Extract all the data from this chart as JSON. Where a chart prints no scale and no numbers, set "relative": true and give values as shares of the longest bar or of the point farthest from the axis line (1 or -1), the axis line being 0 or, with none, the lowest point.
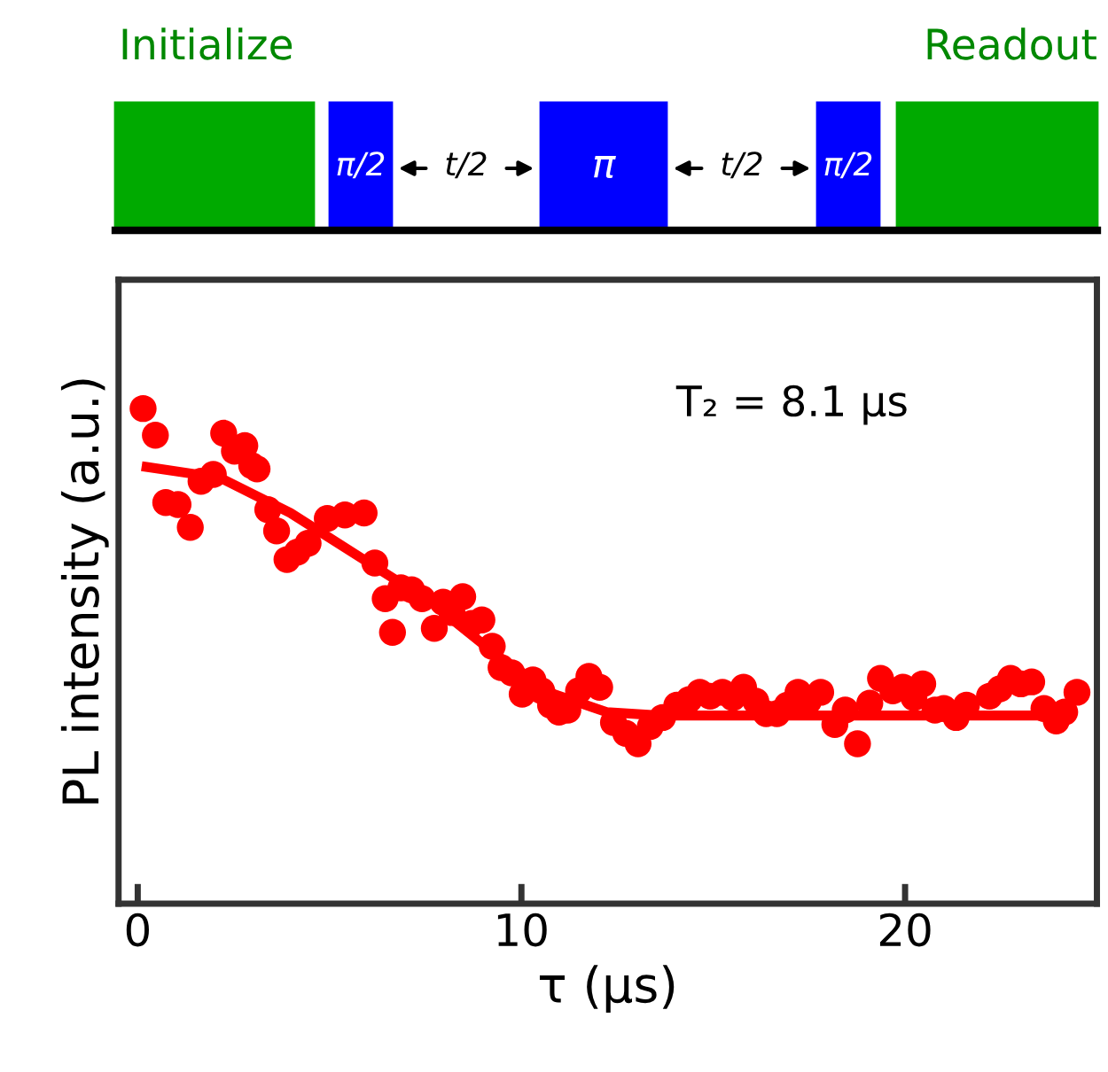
{
  "chart_data": {
    "type": "scatter",
    "xlabel": "τ (μs)",
    "ylabel": "PL intensity (a.u.)",
    "relative": true,
    "xlim": [
      -0.5,
      25
    ],
    "xticks": [
      0,
      10,
      20
    ],
    "tick_labels": "x",
    "annotations": [
      "Initialize",
      "Readout",
      "π/2",
      "t/2",
      "π",
      "t/2",
      "π/2",
      "T₂ = 8.1 μs"
    ],
    "series": [
      {
        "color": "#ff0000",
        "marker": "circle",
        "x": [
          0.14,
          0.46,
          0.73,
          1.05,
          1.37,
          1.65,
          1.97,
          2.24,
          2.52,
          2.79,
          2.97,
          3.11,
          3.39,
          3.62,
          3.89,
          4.16,
          4.44,
          4.94,
          5.4,
          5.9,
          6.18,
          6.45,
          6.64,
          6.86,
          7.14,
          7.41,
          7.73,
          7.96,
          8.19,
          8.47,
          8.7,
          8.97,
          9.24,
          9.47,
          9.75,
          10.02,
          10.3,
          10.53,
          10.76,
          10.98,
          11.21,
          11.49,
          11.76,
          12.04,
          12.4,
          12.72,
          13.04,
          13.36,
          13.68,
          14.05,
          14.37,
          14.65,
          14.92,
          15.24,
          15.51,
          15.79,
          16.11,
          16.38,
          16.66,
          16.93,
          17.21,
          17.48,
          17.8,
          18.17,
          18.44,
          18.76,
          19.08,
          19.36,
          19.68,
          19.95,
          20.23,
          20.46,
          20.78,
          21.01,
          21.33,
          21.6,
          22.2,
          22.47,
          22.75,
          23.02,
          23.3,
          23.62,
          23.94,
          24.16,
          24.48
        ],
        "values": [
          1.0,
          0.946,
          0.81,
          0.806,
          0.76,
          0.853,
          0.867,
          0.95,
          0.914,
          0.925,
          0.885,
          0.878,
          0.796,
          0.753,
          0.695,
          0.71,
          0.728,
          0.778,
          0.785,
          0.789,
          0.688,
          0.616,
          0.548,
          0.638,
          0.634,
          0.616,
          0.556,
          0.609,
          0.588,
          0.62,
          0.566,
          0.573,
          0.52,
          0.477,
          0.466,
          0.423,
          0.452,
          0.43,
          0.401,
          0.387,
          0.391,
          0.43,
          0.459,
          0.437,
          0.366,
          0.344,
          0.323,
          0.358,
          0.376,
          0.401,
          0.412,
          0.427,
          0.419,
          0.427,
          0.416,
          0.437,
          0.409,
          0.384,
          0.384,
          0.401,
          0.427,
          0.409,
          0.427,
          0.362,
          0.391,
          0.323,
          0.405,
          0.455,
          0.43,
          0.437,
          0.416,
          0.444,
          0.391,
          0.394,
          0.376,
          0.401,
          0.419,
          0.434,
          0.455,
          0.444,
          0.448,
          0.394,
          0.369,
          0.387,
          0.427
        ]
      },
      {
        "type": "line",
        "color": "#ff0000",
        "marker": "none",
        "line_style": "solid",
        "x": [
          0.23,
          2.15,
          3.98,
          5.81,
          7.64,
          9.47,
          10.85,
          12.22,
          13.59,
          15.88,
          19.54,
          24.12
        ],
        "values": [
          0.882,
          0.86,
          0.789,
          0.699,
          0.609,
          0.495,
          0.423,
          0.387,
          0.38,
          0.38,
          0.38,
          0.38
        ]
      }
    ]
  }
}
